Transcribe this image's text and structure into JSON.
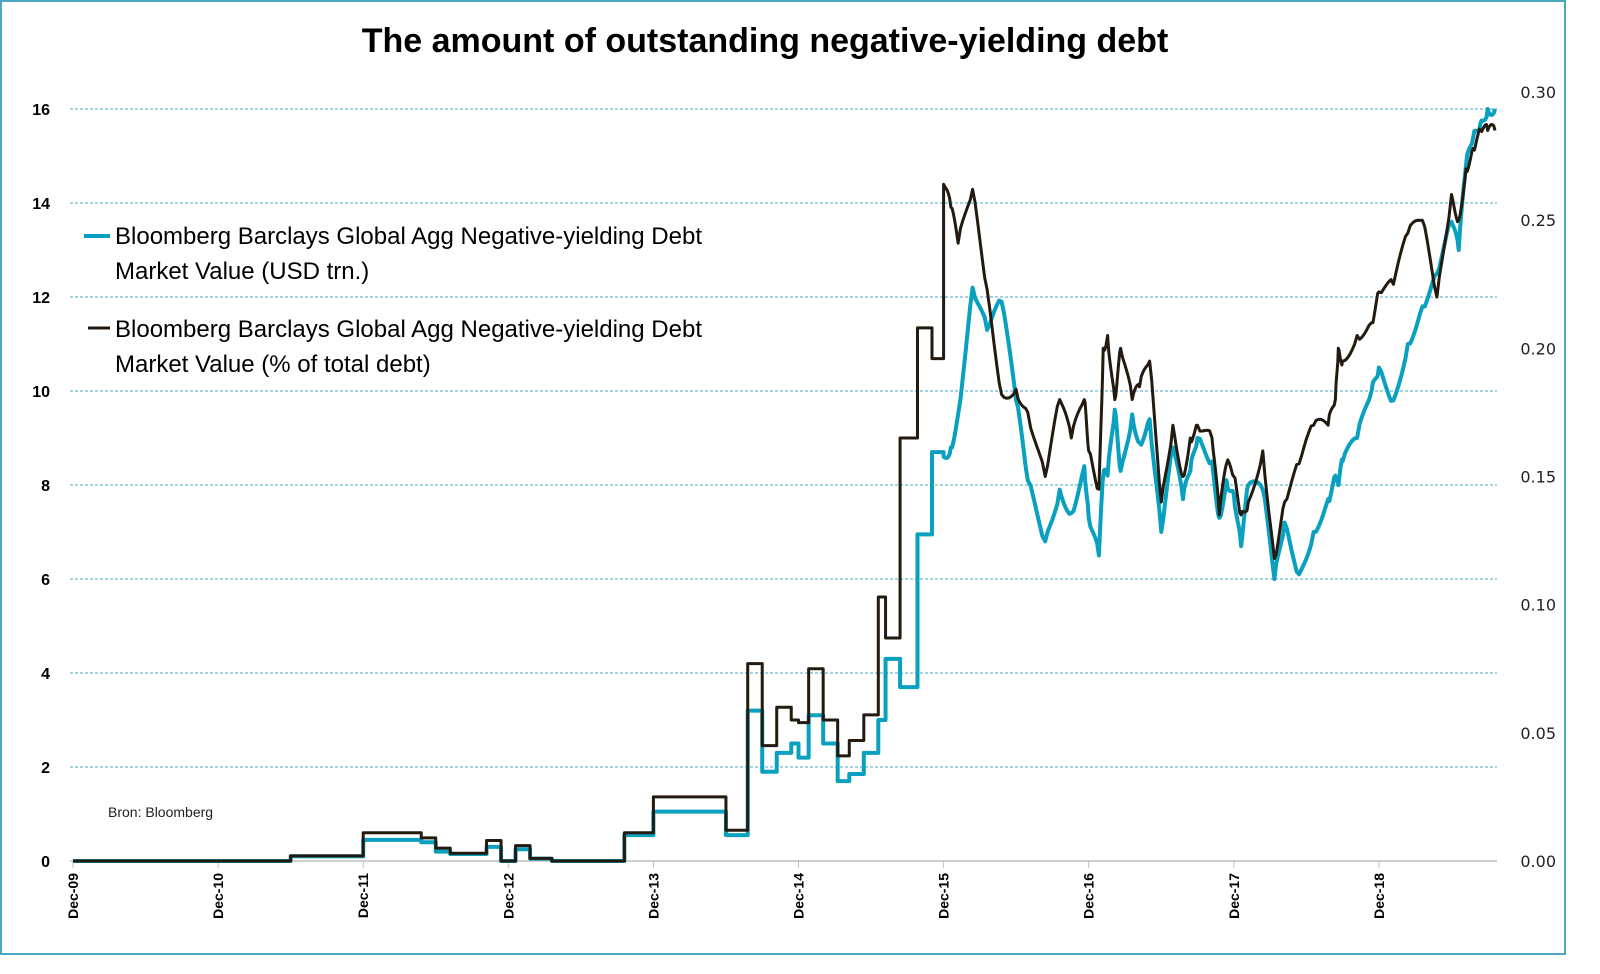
{
  "chart_data": {
    "type": "line",
    "title": "The amount of outstanding negative-yielding debt",
    "source_note": "Bron: Bloomberg",
    "xlabel": "",
    "ylabel_left": "",
    "ylabel_right": "",
    "x_tick_labels": [
      "Dec-09",
      "Dec-10",
      "Dec-11",
      "Dec-12",
      "Dec-13",
      "Dec-14",
      "Dec-15",
      "Dec-16",
      "Dec-17",
      "Dec-18"
    ],
    "x_range_years_from_dec09": [
      0,
      9.85
    ],
    "y_left": {
      "ticks": [
        "0",
        "2",
        "4",
        "6",
        "8",
        "10",
        "12",
        "14",
        "16"
      ],
      "range": [
        0,
        16
      ]
    },
    "y_right": {
      "ticks": [
        "0.00",
        "0.05",
        "0.10",
        "0.15",
        "0.20",
        "0.25",
        "0.30"
      ],
      "range": [
        0,
        0.3
      ]
    },
    "grid": true,
    "legend_position": "upper-left",
    "series": [
      {
        "name": "Bloomberg Barclays Global Agg Negative-yielding Debt Market Value (USD trn.)",
        "legend_lines": [
          "Bloomberg Barclays Global Agg Negative-yielding Debt",
          "Market Value (USD trn.)"
        ],
        "axis": "left",
        "color": "#0aa0bf",
        "step": true,
        "x": [
          0,
          0.15,
          1.0,
          1.5,
          2.0,
          2.4,
          2.5,
          2.6,
          2.85,
          2.95,
          3.05,
          3.15,
          3.3,
          3.45,
          3.6,
          3.7,
          3.8,
          4.0,
          4.5,
          4.65,
          4.75,
          4.85,
          4.95,
          5.0,
          5.07,
          5.17,
          5.27,
          5.35,
          5.45,
          5.55,
          5.6,
          5.7,
          5.82,
          5.92,
          6.0,
          6.05,
          6.1,
          6.2,
          6.3,
          6.4,
          6.5,
          6.58,
          6.7,
          6.8,
          6.88,
          6.97,
          7.0,
          7.07,
          7.1,
          7.13,
          7.18,
          7.22,
          7.3,
          7.35,
          7.42,
          7.5,
          7.58,
          7.65,
          7.7,
          7.75,
          7.85,
          7.9,
          7.95,
          8.0,
          8.05,
          8.1,
          8.2,
          8.28,
          8.35,
          8.45,
          8.55,
          8.65,
          8.7,
          8.72,
          8.75,
          8.85,
          8.95,
          9.0,
          9.1,
          9.2,
          9.3,
          9.4,
          9.5,
          9.55,
          9.6,
          9.65,
          9.7,
          9.75,
          9.8
        ],
        "y": [
          0,
          0,
          0,
          0.1,
          0.45,
          0.4,
          0.2,
          0.15,
          0.3,
          0,
          0.25,
          0.05,
          0,
          0,
          0,
          0,
          0.55,
          1.05,
          0.55,
          3.2,
          1.9,
          2.3,
          2.5,
          2.2,
          3.1,
          2.5,
          1.7,
          1.85,
          2.3,
          3.0,
          4.3,
          3.7,
          6.95,
          8.7,
          8.6,
          8.8,
          9.5,
          12.2,
          11.3,
          11.9,
          9.8,
          8.1,
          6.8,
          7.9,
          7.4,
          8.4,
          7.3,
          6.5,
          8.2,
          8.2,
          9.6,
          8.3,
          9.5,
          8.9,
          9.4,
          7.0,
          8.8,
          7.7,
          8.3,
          9.0,
          8.5,
          7.3,
          8.1,
          7.8,
          6.7,
          8.0,
          7.9,
          6.0,
          7.2,
          6.1,
          7.0,
          7.7,
          8.2,
          8.0,
          8.5,
          9.0,
          10.0,
          10.5,
          9.8,
          11.0,
          11.8,
          12.5,
          13.6,
          13.0,
          14.8,
          15.4,
          15.7,
          16.0,
          16.0
        ],
        "step_until_index": 34
      },
      {
        "name": "Bloomberg Barclays Global Agg Negative-yielding Debt Market Value (% of total debt)",
        "legend_lines": [
          "Bloomberg Barclays Global Agg Negative-yielding Debt",
          "Market Value (% of total debt)"
        ],
        "axis": "right",
        "color": "#231a10",
        "step": true,
        "x": [
          0,
          0.15,
          1.0,
          1.5,
          2.0,
          2.4,
          2.5,
          2.6,
          2.85,
          2.95,
          3.05,
          3.15,
          3.3,
          3.45,
          3.6,
          3.7,
          3.8,
          4.0,
          4.5,
          4.65,
          4.75,
          4.85,
          4.95,
          5.0,
          5.07,
          5.17,
          5.27,
          5.35,
          5.45,
          5.55,
          5.6,
          5.7,
          5.82,
          5.92,
          6.0,
          6.05,
          6.1,
          6.2,
          6.3,
          6.4,
          6.5,
          6.58,
          6.7,
          6.8,
          6.88,
          6.97,
          7.0,
          7.07,
          7.1,
          7.13,
          7.18,
          7.22,
          7.3,
          7.35,
          7.42,
          7.5,
          7.58,
          7.65,
          7.7,
          7.75,
          7.85,
          7.9,
          7.95,
          8.0,
          8.05,
          8.1,
          8.2,
          8.28,
          8.35,
          8.45,
          8.55,
          8.65,
          8.7,
          8.72,
          8.75,
          8.85,
          8.95,
          9.0,
          9.1,
          9.2,
          9.3,
          9.4,
          9.5,
          9.55,
          9.6,
          9.65,
          9.7,
          9.75,
          9.8
        ],
        "y": [
          0,
          0,
          0,
          0.002,
          0.011,
          0.009,
          0.005,
          0.003,
          0.008,
          0,
          0.006,
          0.001,
          0,
          0,
          0,
          0,
          0.011,
          0.025,
          0.012,
          0.077,
          0.045,
          0.06,
          0.055,
          0.054,
          0.075,
          0.055,
          0.041,
          0.047,
          0.057,
          0.103,
          0.087,
          0.165,
          0.208,
          0.196,
          0.264,
          0.255,
          0.241,
          0.262,
          0.223,
          0.182,
          0.184,
          0.175,
          0.15,
          0.18,
          0.165,
          0.18,
          0.16,
          0.145,
          0.2,
          0.205,
          0.18,
          0.2,
          0.18,
          0.185,
          0.195,
          0.14,
          0.17,
          0.15,
          0.165,
          0.17,
          0.165,
          0.135,
          0.155,
          0.15,
          0.135,
          0.14,
          0.16,
          0.118,
          0.14,
          0.155,
          0.17,
          0.17,
          0.18,
          0.2,
          0.195,
          0.205,
          0.21,
          0.222,
          0.225,
          0.245,
          0.25,
          0.22,
          0.26,
          0.25,
          0.27,
          0.278,
          0.285,
          0.285,
          0.285
        ],
        "step_until_index": 34
      }
    ]
  }
}
